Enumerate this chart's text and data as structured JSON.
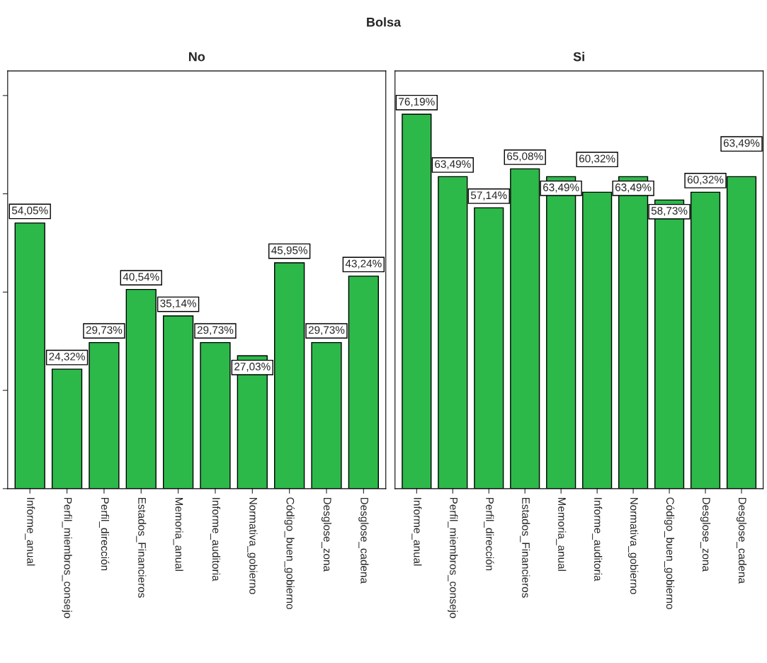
{
  "chart_data": [
    {
      "type": "bar",
      "title": "No",
      "annotations": [
        "Bolsa"
      ],
      "categories": [
        "Informe_anual",
        "Perfil_miembros_consejo",
        "Perfil_dirección",
        "Estados_Financieros",
        "Memoria_anual",
        "Informe_auditoria",
        "Normativa_gobierno",
        "Código_buen_gobierno",
        "Desglose_zona",
        "Desglose_cadena"
      ],
      "series": [
        {
          "color": "#2db84a",
          "values": [
            54.05,
            24.32,
            29.73,
            40.54,
            35.14,
            29.73,
            27.03,
            45.95,
            29.73,
            43.24
          ],
          "value_labels": [
            "54,05%",
            "24,32%",
            "29,73%",
            "40,54%",
            "35,14%",
            "29,73%",
            "27,03%",
            "45,95%",
            "29,73%",
            "43,24%"
          ]
        }
      ],
      "ylim": [
        0,
        85
      ],
      "yticks": [
        {
          "value": 0,
          "label": null
        },
        {
          "value": 20,
          "label": null
        },
        {
          "value": 40,
          "label": null
        },
        {
          "value": 60,
          "label": null
        },
        {
          "value": 80,
          "label": null
        }
      ],
      "tick_labels": "x",
      "grid": false
    },
    {
      "type": "bar",
      "title": "Si",
      "categories": [
        "Informe_anual",
        "Perfil_miembros_consejo",
        "Perfil_dirección",
        "Estados_Financieros",
        "Memoria_anual",
        "Informe_auditoria",
        "Normativa_gobierno",
        "Código_buen_gobierno",
        "Desglose_zona",
        "Desglose_cadena"
      ],
      "series": [
        {
          "color": "#2db84a",
          "values": [
            76.19,
            63.49,
            57.14,
            65.08,
            63.49,
            60.32,
            63.49,
            58.73,
            60.32,
            63.49
          ],
          "value_labels": [
            "76,19%",
            "63,49%",
            "57,14%",
            "65,08%",
            "63,49%",
            "60,32%",
            "63,49%",
            "58,73%",
            "60,32%",
            "63,49%"
          ]
        }
      ],
      "ylim": [
        0,
        85
      ],
      "tick_labels": "x",
      "grid": false
    }
  ]
}
